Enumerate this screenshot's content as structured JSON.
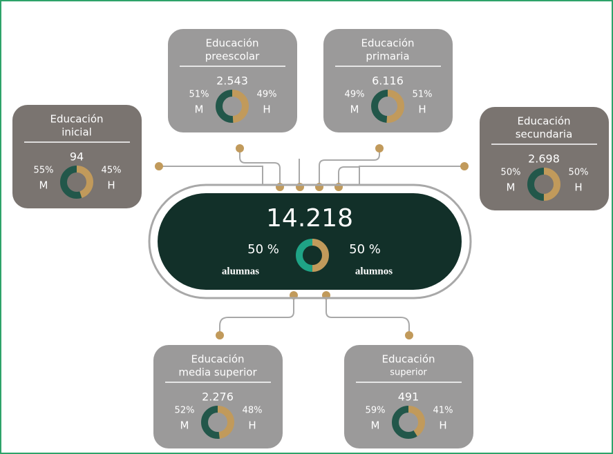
{
  "center": {
    "total": "14.218",
    "women": {
      "value": 50,
      "label": "50 %"
    },
    "men": {
      "value": 50,
      "label": "50 %"
    },
    "women_label": "alumnas",
    "men_label": "alumnos"
  },
  "nodes": [
    {
      "title": [
        "Educación",
        "inicial"
      ],
      "total": "94",
      "m": {
        "value": 55,
        "label": "55%"
      },
      "h": {
        "value": 45,
        "label": "45%"
      },
      "m_label": "M",
      "h_label": "H"
    },
    {
      "title": [
        "Educación",
        "preescolar"
      ],
      "total": "2.543",
      "m": {
        "value": 51,
        "label": "51%"
      },
      "h": {
        "value": 49,
        "label": "49%"
      },
      "m_label": "M",
      "h_label": "H"
    },
    {
      "title": [
        "Educación",
        "primaria"
      ],
      "total": "6.116",
      "m": {
        "value": 49,
        "label": "49%"
      },
      "h": {
        "value": 51,
        "label": "51%"
      },
      "m_label": "M",
      "h_label": "H"
    },
    {
      "title": [
        "Educación",
        "secundaria"
      ],
      "total": "2.698",
      "m": {
        "value": 50,
        "label": "50%"
      },
      "h": {
        "value": 50,
        "label": "50%"
      },
      "m_label": "M",
      "h_label": "H"
    },
    {
      "title": [
        "Educación",
        "media superior"
      ],
      "total": "2.276",
      "m": {
        "value": 52,
        "label": "52%"
      },
      "h": {
        "value": 48,
        "label": "48%"
      },
      "m_label": "M",
      "h_label": "H"
    },
    {
      "title": [
        "Educación",
        "superior"
      ],
      "total": "491",
      "m": {
        "value": 59,
        "label": "59%"
      },
      "h": {
        "value": 41,
        "label": "41%"
      },
      "m_label": "M",
      "h_label": "H"
    }
  ]
}
